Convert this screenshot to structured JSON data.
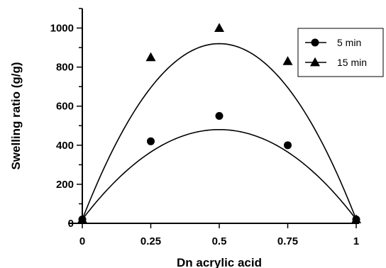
{
  "chart_data": {
    "type": "scatter",
    "title": "",
    "xlabel": "Dn acrylic acid",
    "ylabel": "Swelling ratio (g/g)",
    "xlim": [
      0,
      1
    ],
    "ylim": [
      0,
      1100
    ],
    "x_ticks": [
      0,
      0.25,
      0.5,
      0.75,
      1
    ],
    "x_tick_labels": [
      "0",
      "0.25",
      "0.5",
      "0.75",
      "1"
    ],
    "y_ticks": [
      0,
      200,
      400,
      600,
      800,
      1000
    ],
    "y_tick_labels": [
      "0",
      "200",
      "400",
      "600",
      "800",
      "1000"
    ],
    "grid": false,
    "legend_position": "top-right",
    "series": [
      {
        "name": "5 min",
        "marker": "circle",
        "x": [
          0,
          0.25,
          0.5,
          0.75,
          1
        ],
        "y": [
          20,
          420,
          550,
          400,
          20
        ],
        "fit": {
          "type": "parabola",
          "x": [
            0,
            0.5,
            1
          ],
          "y": [
            20,
            480,
            20
          ]
        }
      },
      {
        "name": "15 min",
        "marker": "triangle",
        "x": [
          0,
          0.25,
          0.5,
          0.75,
          1
        ],
        "y": [
          20,
          850,
          1000,
          830,
          20
        ],
        "fit": {
          "type": "parabola",
          "x": [
            0,
            0.5,
            1
          ],
          "y": [
            20,
            920,
            20
          ]
        }
      }
    ]
  }
}
